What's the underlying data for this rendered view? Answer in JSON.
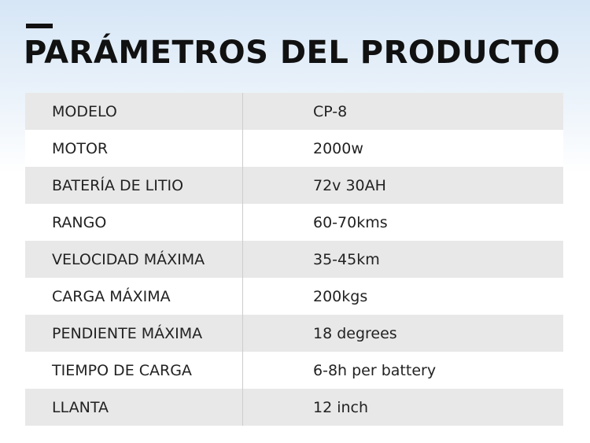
{
  "header": {
    "title": "PARÁMETROS DEL PRODUCTO"
  },
  "table": {
    "rows": [
      [
        "MODELO",
        "CP-8"
      ],
      [
        "MOTOR",
        "2000w"
      ],
      [
        "BATERÍA DE LITIO",
        "72v 30AH"
      ],
      [
        "RANGO",
        "60-70kms"
      ],
      [
        "VELOCIDAD MÁXIMA",
        "35-45km"
      ],
      [
        "CARGA MÁXIMA",
        "200kgs"
      ],
      [
        "PENDIENTE MÁXIMA",
        "18 degrees"
      ],
      [
        "TIEMPO DE CARGA",
        "6-8h per battery"
      ],
      [
        "LLANTA",
        "12 inch"
      ]
    ]
  }
}
